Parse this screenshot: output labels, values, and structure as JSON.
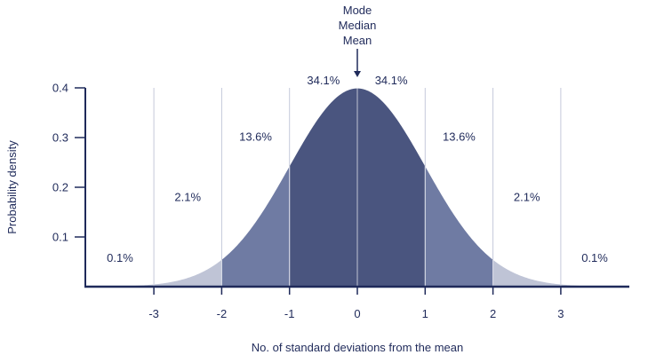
{
  "chart_data": {
    "type": "area",
    "title": "",
    "xlabel": "No. of standard deviations from the mean",
    "ylabel": "Probability density",
    "xlim": [
      -4,
      4
    ],
    "ylim": [
      0,
      0.4
    ],
    "x_ticks": [
      {
        "value": -3,
        "label": "-3"
      },
      {
        "value": -2,
        "label": "-2"
      },
      {
        "value": -1,
        "label": "-1"
      },
      {
        "value": 0,
        "label": "0"
      },
      {
        "value": 1,
        "label": "1"
      },
      {
        "value": 2,
        "label": "2"
      },
      {
        "value": 3,
        "label": "3"
      }
    ],
    "y_ticks": [
      {
        "value": 0.1,
        "label": "0.1"
      },
      {
        "value": 0.2,
        "label": "0.2"
      },
      {
        "value": 0.3,
        "label": "0.3"
      },
      {
        "value": 0.4,
        "label": "0.4"
      }
    ],
    "distribution": {
      "name": "standard normal",
      "mean": 0,
      "sd": 1
    },
    "regions": [
      {
        "name": "-3 to -2 sd",
        "from": -3,
        "to": -2,
        "percent": 2.1,
        "label": "2.1%",
        "label_at": [
          -2.5,
          0.18
        ]
      },
      {
        "name": "-2 to -1 sd",
        "from": -2,
        "to": -1,
        "percent": 13.6,
        "label": "13.6%",
        "label_at": [
          -1.5,
          0.302
        ]
      },
      {
        "name": "-1 to 0 sd",
        "from": -1,
        "to": 0,
        "percent": 34.1,
        "label": "34.1%",
        "label_at": [
          -0.5,
          0.415
        ]
      },
      {
        "name": "0 to 1 sd",
        "from": 0,
        "to": 1,
        "percent": 34.1,
        "label": "34.1%",
        "label_at": [
          0.5,
          0.415
        ]
      },
      {
        "name": "1 to 2 sd",
        "from": 1,
        "to": 2,
        "percent": 13.6,
        "label": "13.6%",
        "label_at": [
          1.5,
          0.302
        ]
      },
      {
        "name": "2 to 3 sd",
        "from": 2,
        "to": 3,
        "percent": 2.1,
        "label": "2.1%",
        "label_at": [
          2.5,
          0.18
        ]
      }
    ],
    "tail_labels": [
      {
        "name": "left tail beyond -3 sd",
        "percent": 0.1,
        "label": "0.1%",
        "label_at": [
          -3.5,
          0.058
        ]
      },
      {
        "name": "right tail beyond 3 sd",
        "percent": 0.1,
        "label": "0.1%",
        "label_at": [
          3.5,
          0.058
        ]
      }
    ],
    "annotation": {
      "lines": [
        "Mode",
        "Median",
        "Mean"
      ],
      "points_to_x": 0
    },
    "colors": {
      "inner": "#4a557f",
      "middle": "#6f7ba3",
      "outer": "#bfc4d6",
      "axis": "#1f2a5a",
      "grid": "#c5c9da",
      "text": "#1f2a5a"
    }
  }
}
